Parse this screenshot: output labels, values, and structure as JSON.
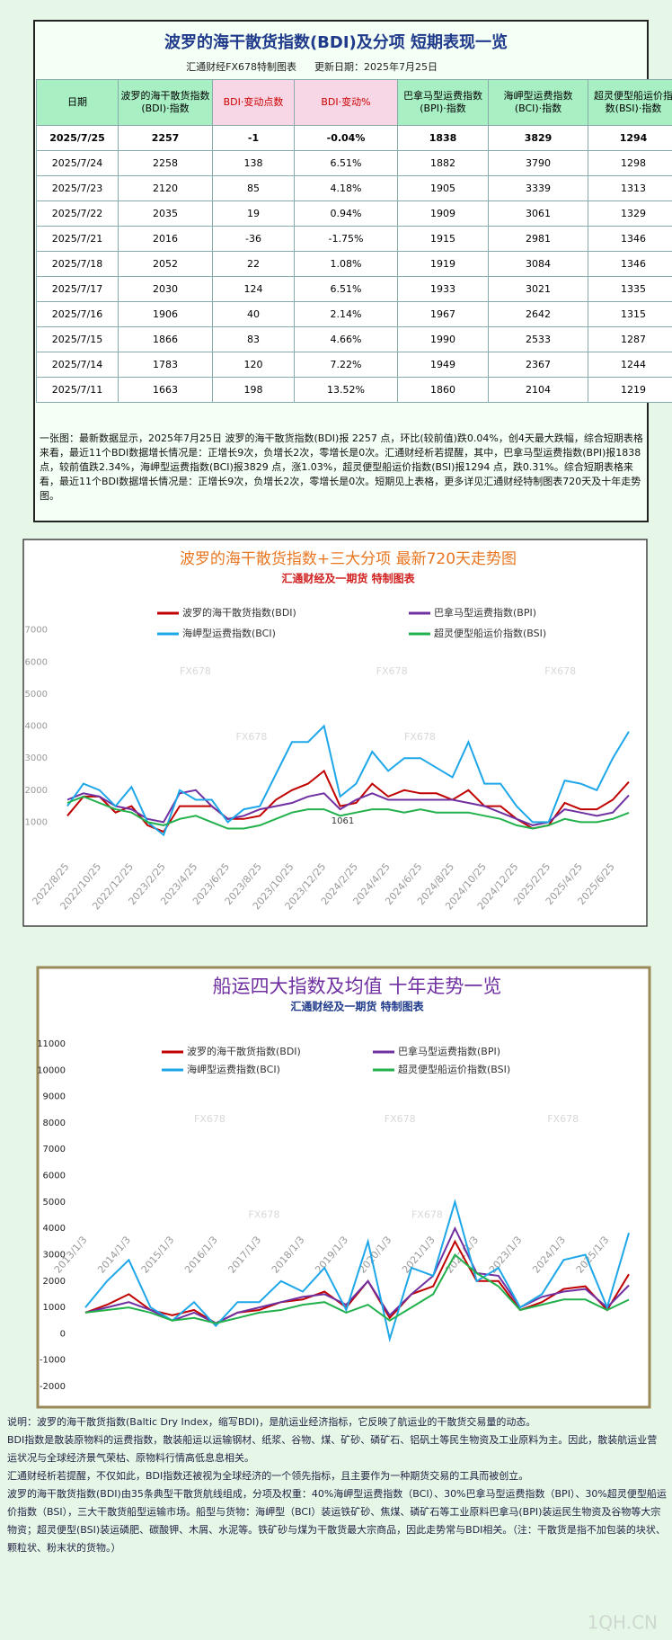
{
  "table": {
    "title": "波罗的海干散货指数(BDI)及分项  短期表现一览",
    "source": "汇通财经FX678特制图表",
    "updated": "更新日期：2025年7月25日",
    "header": [
      "日期",
      "波罗的海干散货指数(BDI)·指数",
      "BDI·变动点数",
      "BDI·变动%",
      "巴拿马型运费指数(BPI)·指数",
      "海岬型运费指数(BCI)·指数",
      "超灵便型船运价指数(BSI)·指数"
    ],
    "rows": [
      [
        "2025/7/25",
        "2257",
        "-1",
        "-0.04%",
        "1838",
        "3829",
        "1294"
      ],
      [
        "2025/7/24",
        "2258",
        "138",
        "6.51%",
        "1882",
        "3790",
        "1298"
      ],
      [
        "2025/7/23",
        "2120",
        "85",
        "4.18%",
        "1905",
        "3339",
        "1313"
      ],
      [
        "2025/7/22",
        "2035",
        "19",
        "0.94%",
        "1909",
        "3061",
        "1329"
      ],
      [
        "2025/7/21",
        "2016",
        "-36",
        "-1.75%",
        "1915",
        "2981",
        "1346"
      ],
      [
        "2025/7/18",
        "2052",
        "22",
        "1.08%",
        "1919",
        "3084",
        "1346"
      ],
      [
        "2025/7/17",
        "2030",
        "124",
        "6.51%",
        "1933",
        "3021",
        "1335"
      ],
      [
        "2025/7/16",
        "1906",
        "40",
        "2.14%",
        "1967",
        "2642",
        "1315"
      ],
      [
        "2025/7/15",
        "1866",
        "83",
        "4.66%",
        "1990",
        "2533",
        "1287"
      ],
      [
        "2025/7/14",
        "1783",
        "120",
        "7.22%",
        "1949",
        "2367",
        "1244"
      ],
      [
        "2025/7/11",
        "1663",
        "198",
        "13.52%",
        "1860",
        "2104",
        "1219"
      ]
    ]
  },
  "summary": "一张图：最新数据显示，2025年7月25日 波罗的海干散货指数(BDI)报 2257 点，环比(较前值)跌0.04%，创4天最大跌幅，综合短期表格来看，最近11个BDI数据增长情况是：正增长9次，负增长2次，零增长是0次。汇通财经析若提醒，其中，巴拿马型运费指数(BPI)报1838 点，较前值跌2.34%，海岬型运费指数(BCI)报3829 点，涨1.03%，超灵便型船运价指数(BSI)报1294 点，跌0.31%。综合短期表格来看，最近11个BDI数据增长情况是：正增长9次，负增长2次，零增长是0次。短期见上表格，更多详见汇通财经特制图表720天及十年走势图。",
  "chart_data": [
    {
      "type": "line",
      "title": "波罗的海干散货指数+三大分项  最新720天走势图",
      "subtitle": "汇通财经及一期货 特制图表",
      "watermark": "FX678",
      "annotation": "1061",
      "categories": [
        "2022/8/25",
        null,
        "2022/10/25",
        null,
        "2022/12/25",
        null,
        "2023/2/25",
        null,
        "2023/4/25",
        null,
        "2023/6/25",
        null,
        "2023/8/25",
        null,
        "2023/10/25",
        null,
        "2023/12/25",
        null,
        "2024/2/25",
        null,
        "2024/4/25",
        null,
        "2024/6/25",
        null,
        "2024/8/25",
        null,
        "2024/10/25",
        null,
        "2024/12/25",
        null,
        "2025/2/25",
        null,
        "2025/4/25",
        null,
        "2025/6/25",
        null
      ],
      "series": [
        {
          "name": "波罗的海干散货指数(BDI)",
          "color": "#c00000",
          "values": [
            1200,
            1800,
            1800,
            1300,
            1500,
            900,
            700,
            1500,
            1500,
            1500,
            1100,
            1100,
            1200,
            1700,
            2000,
            2200,
            2600,
            1500,
            1600,
            2200,
            1800,
            2000,
            1900,
            1900,
            1700,
            2000,
            1500,
            1500,
            1100,
            800,
            900,
            1600,
            1400,
            1400,
            1700,
            2257
          ]
        },
        {
          "name": "巴拿马型运费指数(BPI)",
          "color": "#7030a0",
          "values": [
            1700,
            1900,
            1800,
            1500,
            1400,
            1100,
            1000,
            1900,
            2000,
            1500,
            1100,
            1200,
            1400,
            1500,
            1600,
            1800,
            1900,
            1400,
            1700,
            1900,
            1700,
            1700,
            1700,
            1700,
            1700,
            1600,
            1500,
            1300,
            1100,
            900,
            1000,
            1400,
            1300,
            1200,
            1300,
            1838
          ]
        },
        {
          "name": "海岬型运费指数(BCI)",
          "color": "#1ea7e8",
          "values": [
            1500,
            2200,
            2000,
            1500,
            2100,
            1000,
            600,
            2000,
            1700,
            1700,
            1000,
            1400,
            1500,
            2500,
            3500,
            3500,
            4000,
            1800,
            2200,
            3200,
            2600,
            3000,
            3000,
            2700,
            2400,
            3500,
            2200,
            2200,
            1500,
            1000,
            1000,
            2300,
            2200,
            2000,
            3000,
            3829
          ]
        },
        {
          "name": "超灵便型船运价指数(BSI)",
          "color": "#22b14c",
          "values": [
            1600,
            1800,
            1600,
            1400,
            1300,
            1000,
            900,
            1100,
            1200,
            1000,
            800,
            800,
            900,
            1100,
            1300,
            1400,
            1400,
            1200,
            1300,
            1400,
            1400,
            1300,
            1400,
            1300,
            1300,
            1300,
            1200,
            1100,
            900,
            800,
            900,
            1100,
            1000,
            1000,
            1100,
            1294
          ]
        }
      ],
      "ylim": [
        0,
        7300
      ],
      "yticks": [
        1000,
        2000,
        3000,
        4000,
        5000,
        6000,
        7000
      ],
      "legend": "top"
    },
    {
      "type": "line",
      "title": "船运四大指数及均值 十年走势一览",
      "subtitle": "汇通财经及一期货 特制图表",
      "watermark": "FX678",
      "categories": [
        "2013/1/3",
        null,
        "2014/1/3",
        null,
        "2015/1/3",
        null,
        "2016/1/3",
        null,
        "2017/1/3",
        null,
        "2018/1/3",
        null,
        "2019/1/3",
        null,
        "2020/1/3",
        null,
        "2021/1/3",
        null,
        "2022/1/3",
        null,
        "2023/1/3",
        null,
        "2024/1/3",
        null,
        "2025/1/3",
        null
      ],
      "series": [
        {
          "name": "波罗的海干散货指数(BDI)",
          "color": "#c00000",
          "values": [
            800,
            1100,
            1500,
            900,
            700,
            900,
            400,
            800,
            900,
            1200,
            1300,
            1600,
            1000,
            2000,
            600,
            1500,
            1800,
            3500,
            2000,
            2000,
            900,
            1200,
            1700,
            1800,
            900,
            2257
          ]
        },
        {
          "name": "巴拿马型运费指数(BPI)",
          "color": "#7030a0",
          "values": [
            800,
            1000,
            1200,
            900,
            500,
            800,
            400,
            800,
            1000,
            1200,
            1400,
            1500,
            1100,
            2000,
            700,
            1500,
            2200,
            4000,
            2300,
            2200,
            1000,
            1400,
            1600,
            1700,
            1000,
            1838
          ]
        },
        {
          "name": "海岬型运费指数(BCI)",
          "color": "#1ea7e8",
          "values": [
            1000,
            2000,
            2800,
            1000,
            500,
            1200,
            300,
            1200,
            1200,
            2000,
            1600,
            2500,
            900,
            3500,
            -200,
            2500,
            2200,
            5000,
            2000,
            2500,
            1000,
            1500,
            2800,
            3000,
            1000,
            3829
          ]
        },
        {
          "name": "超灵便型船运价指数(BSI)",
          "color": "#22b14c",
          "values": [
            800,
            900,
            1000,
            800,
            500,
            600,
            400,
            600,
            800,
            900,
            1100,
            1200,
            800,
            1100,
            500,
            1000,
            1500,
            3000,
            2300,
            1800,
            900,
            1100,
            1300,
            1300,
            900,
            1294
          ]
        }
      ],
      "ylim": [
        -2000,
        11000
      ],
      "yticks": [
        -2000,
        -1000,
        0,
        1000,
        2000,
        3000,
        4000,
        5000,
        6000,
        7000,
        8000,
        9000,
        10000,
        11000
      ],
      "legend": "top"
    }
  ],
  "notes": [
    "说明：波罗的海干散货指数(Baltic Dry Index，缩写BDI)，是航运业经济指标，它反映了航运业的干散货交易量的动态。",
    "BDI指数是散装原物料的运费指数，散装船运以运输钢材、纸浆、谷物、煤、矿砂、磷矿石、铝矾土等民生物资及工业原料为主。因此，散装航运业营运状况与全球经济景气荣枯、原物料行情高低息息相关。",
    "汇通财经析若提醒，不仅如此，BDI指数还被视为全球经济的一个领先指标，且主要作为一种期货交易的工具而被创立。",
    "波罗的海干散货指数(BDI)由35条典型干散货航线组成，分项及权重：40%海岬型运费指数（BCI）、30%巴拿马型运费指数（BPI）、30%超灵便型船运价指数（BSI），三大干散货船型运输市场。船型与货物：海岬型（BCI）装运铁矿砂、焦煤、磷矿石等工业原料巴拿马(BPI)装运民生物资及谷物等大宗物资；超灵便型(BSI)装运磷肥、碳酸钾、木屑、水泥等。铁矿砂与煤为干散货最大宗商品，因此走势常与BDI相关。（注：干散货是指不加包装的块状、颗粒状、粉末状的货物。）"
  ],
  "footer": "1QH.CN"
}
